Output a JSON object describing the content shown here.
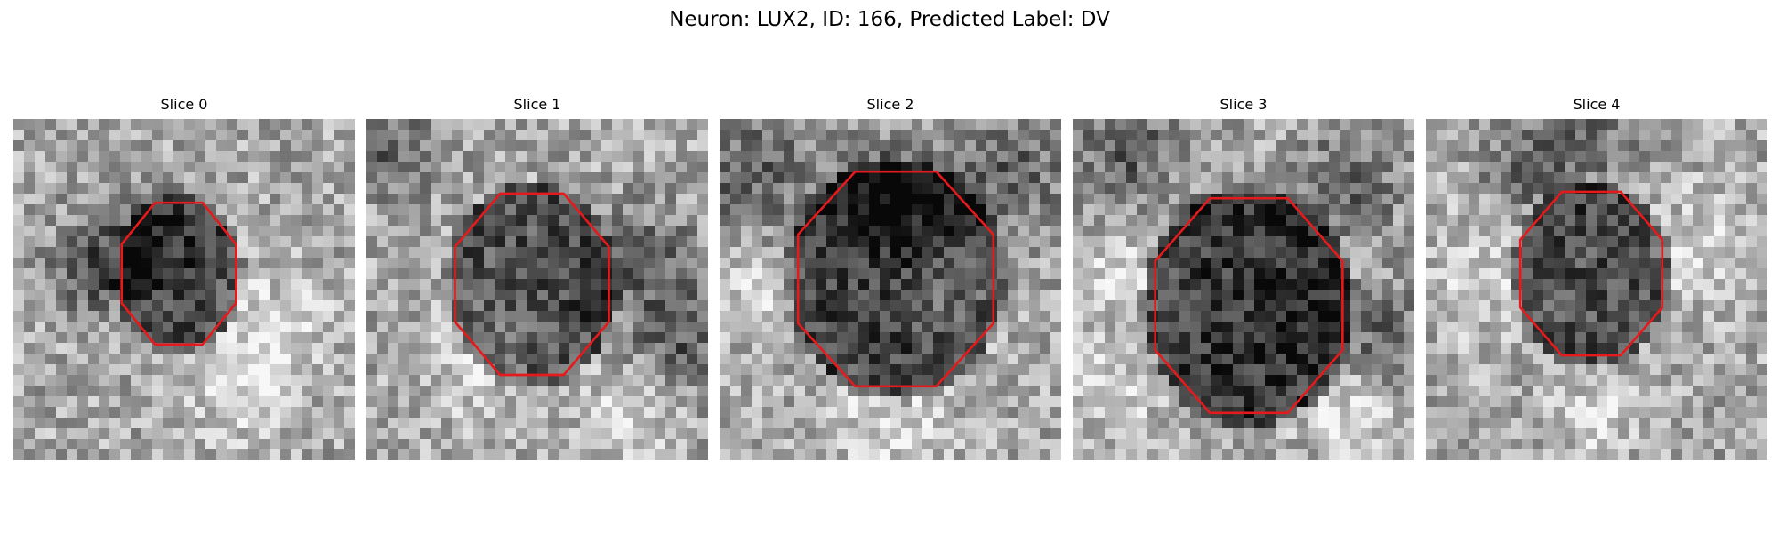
{
  "figure": {
    "title": "Neuron: LUX2, ID: 166, Predicted Label: DV"
  },
  "panels": [
    {
      "title": "Slice 0",
      "image": {
        "grid": 32,
        "contour_color": "#e41a1c",
        "center": [
          15.5,
          14.5
        ],
        "radii": [
          5.8,
          7.2
        ],
        "cell_darkness": 0.38,
        "background_dark_spots": [
          [
            10.5,
            11.0,
            3.5
          ],
          [
            7.0,
            15.0,
            2.5
          ]
        ],
        "light_spots": [
          [
            24.0,
            20.0,
            4.0
          ],
          [
            21.0,
            26.0,
            3.0
          ]
        ],
        "seed": 11
      }
    },
    {
      "title": "Slice 1",
      "image": {
        "grid": 32,
        "contour_color": "#e41a1c",
        "center": [
          15.5,
          15.5
        ],
        "radii": [
          7.8,
          9.2
        ],
        "cell_darkness": 0.34,
        "background_dark_spots": [
          [
            26.0,
            14.0,
            4.0
          ],
          [
            30.0,
            21.0,
            3.0
          ],
          [
            2.0,
            3.0,
            3.0
          ]
        ],
        "light_spots": [
          [
            10.0,
            23.0,
            3.5
          ],
          [
            24.0,
            28.0,
            3.0
          ]
        ],
        "seed": 22
      }
    },
    {
      "title": "Slice 2",
      "image": {
        "grid": 32,
        "contour_color": "#e41a1c",
        "center": [
          16.5,
          15.0
        ],
        "radii": [
          9.9,
          10.9
        ],
        "cell_darkness": 0.42,
        "background_dark_spots": [
          [
            3.0,
            5.0,
            4.5
          ],
          [
            27.0,
            5.0,
            4.0
          ],
          [
            16.0,
            7.0,
            3.5
          ]
        ],
        "light_spots": [
          [
            22.0,
            16.0,
            3.0
          ],
          [
            3.0,
            16.0,
            3.5
          ],
          [
            16.0,
            29.0,
            4.0
          ]
        ],
        "seed": 33
      }
    },
    {
      "title": "Slice 3",
      "image": {
        "grid": 32,
        "contour_color": "#e41a1c",
        "center": [
          16.5,
          17.5
        ],
        "radii": [
          9.5,
          10.9
        ],
        "cell_darkness": 0.46,
        "background_dark_spots": [
          [
            5.0,
            3.0,
            4.0
          ],
          [
            26.0,
            6.0,
            3.5
          ],
          [
            29.0,
            20.0,
            3.0
          ]
        ],
        "light_spots": [
          [
            5.0,
            15.0,
            3.5
          ],
          [
            4.0,
            26.0,
            3.0
          ],
          [
            26.0,
            28.0,
            3.0
          ]
        ],
        "seed": 44
      }
    },
    {
      "title": "Slice 4",
      "image": {
        "grid": 32,
        "contour_color": "#e41a1c",
        "center": [
          15.5,
          14.5
        ],
        "radii": [
          7.2,
          8.3
        ],
        "cell_darkness": 0.36,
        "background_dark_spots": [
          [
            15.0,
            2.0,
            3.0
          ],
          [
            9.0,
            5.0,
            2.5
          ]
        ],
        "light_spots": [
          [
            5.0,
            15.0,
            3.5
          ],
          [
            26.0,
            12.0,
            3.5
          ],
          [
            16.0,
            28.0,
            3.0
          ]
        ],
        "seed": 55
      }
    }
  ]
}
